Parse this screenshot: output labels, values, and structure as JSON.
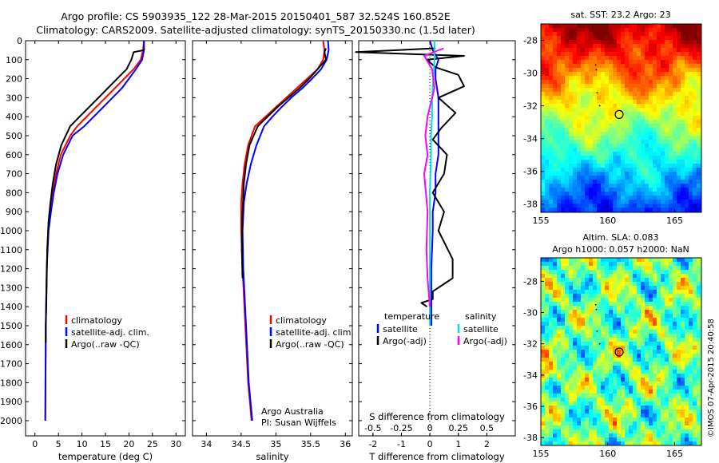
{
  "title_line1": "Argo profile: CS 5903935_122 28-Mar-2015 20150401_587 32.524S 160.852E",
  "title_line2": "Climatology: CARS2009. Satellite-adjusted climatology: synTS_20150330.nc (1.5d later)",
  "colors": {
    "climatology": "#ff0000",
    "satellite": "#0000ff",
    "argo": "#000000",
    "argo_salinity": "#ff00ff",
    "salinity_satellite": "#00e0e0"
  },
  "chart_data": [
    {
      "type": "line",
      "id": "temperature",
      "xlabel": "temperature (deg C)",
      "ylabel": "",
      "xlim": [
        -2,
        32
      ],
      "ylim": [
        2080,
        0
      ],
      "xticks": [
        0,
        5,
        10,
        15,
        20,
        25,
        30
      ],
      "yticks": [
        0,
        100,
        200,
        300,
        400,
        500,
        600,
        700,
        800,
        900,
        1000,
        1100,
        1200,
        1300,
        1400,
        1500,
        1600,
        1700,
        1800,
        1900,
        2000
      ],
      "legend": [
        "climatology",
        "satellite-adj. clim.",
        "Argo(..raw -QC)"
      ],
      "legend_position": "lower-right",
      "series": [
        {
          "name": "climatology",
          "x": [
            23.2,
            23,
            22.5,
            21,
            19,
            17,
            15,
            13,
            11,
            9,
            7.5,
            5.5,
            4.5,
            3.8,
            3.2,
            2.8,
            2.5,
            2.3,
            2.2
          ],
          "y": [
            0,
            50,
            100,
            150,
            200,
            250,
            300,
            350,
            400,
            450,
            500,
            600,
            700,
            800,
            900,
            1000,
            1200,
            1500,
            2000
          ]
        },
        {
          "name": "satellite-adj. clim.",
          "x": [
            23.2,
            23.2,
            22.8,
            21.5,
            20,
            18.5,
            16.5,
            14.5,
            12.5,
            10.5,
            8,
            6,
            4.8,
            4,
            3.4,
            2.9,
            2.5,
            2.3,
            2.2
          ],
          "y": [
            0,
            50,
            100,
            150,
            200,
            250,
            300,
            350,
            400,
            450,
            500,
            600,
            700,
            800,
            900,
            1000,
            1200,
            1500,
            2000
          ]
        },
        {
          "name": "Argo(..raw -QC)",
          "x": [
            23.3,
            23.1,
            21,
            20.5,
            19.5,
            17.5,
            15.5,
            13.5,
            11.5,
            9.5,
            7.5,
            5.6,
            4.5,
            3.8,
            3.3,
            2.9,
            2.6,
            2.5,
            2.4,
            2.3,
            2.3
          ],
          "y": [
            40,
            50,
            60,
            100,
            150,
            200,
            250,
            300,
            350,
            400,
            450,
            550,
            650,
            750,
            850,
            950,
            1100,
            1250,
            1400,
            1500,
            1590
          ]
        }
      ]
    },
    {
      "type": "line",
      "id": "salinity",
      "xlabel": "salinity",
      "xlim": [
        33.8,
        36.1
      ],
      "ylim": [
        2080,
        0
      ],
      "xticks": [
        34,
        34.5,
        35,
        35.5,
        36
      ],
      "legend": [
        "climatology",
        "satellite-adj. clim.",
        "Argo(..raw -QC)"
      ],
      "legend_position": "lower-right",
      "annotation": [
        "Argo Australia",
        "PI: Susan Wijffels"
      ],
      "series": [
        {
          "name": "climatology",
          "x": [
            35.68,
            35.7,
            35.68,
            35.6,
            35.45,
            35.3,
            35.15,
            35,
            34.85,
            34.7,
            34.6,
            34.55,
            34.52,
            34.5,
            34.5,
            34.52,
            34.56,
            34.6,
            34.65
          ],
          "y": [
            0,
            50,
            100,
            150,
            200,
            250,
            300,
            350,
            400,
            450,
            550,
            650,
            750,
            850,
            1000,
            1200,
            1500,
            1800,
            2000
          ]
        },
        {
          "name": "satellite-adj. clim.",
          "x": [
            35.75,
            35.76,
            35.73,
            35.65,
            35.52,
            35.38,
            35.22,
            35.08,
            34.95,
            34.83,
            34.72,
            34.64,
            34.58,
            34.54,
            34.52,
            34.53,
            34.57,
            34.61,
            34.66
          ],
          "y": [
            0,
            50,
            100,
            150,
            200,
            250,
            300,
            350,
            400,
            450,
            550,
            650,
            750,
            850,
            1000,
            1200,
            1500,
            1800,
            2000
          ]
        },
        {
          "name": "Argo(..raw -QC)",
          "x": [
            35.72,
            35.7,
            35.72,
            35.6,
            35.48,
            35.34,
            35.18,
            35.02,
            34.88,
            34.74,
            34.62,
            34.57,
            34.54,
            34.52,
            34.51,
            34.52
          ],
          "y": [
            40,
            60,
            100,
            150,
            200,
            250,
            300,
            350,
            400,
            450,
            550,
            650,
            750,
            900,
            1100,
            1250
          ]
        }
      ]
    },
    {
      "type": "line",
      "id": "difference",
      "xlabel": "T difference from climatology",
      "xlabel_top": "S difference from climatology",
      "xlim": [
        -2.5,
        3
      ],
      "ylim": [
        2080,
        0
      ],
      "xticks": [
        -2,
        -1,
        0,
        1,
        2
      ],
      "x2ticks": [
        -0.5,
        -0.25,
        0,
        0.25,
        0.5
      ],
      "x2ticklabels": [
        "-0.5",
        "-0.25",
        "0",
        "0.25",
        "0.5"
      ],
      "legend": {
        "temperature": [
          "satellite",
          "Argo(-adj)"
        ],
        "salinity": [
          "satellite",
          "Argo(-adj)"
        ]
      },
      "legend_headers": [
        "temperature",
        "salinity"
      ],
      "legend_position": "lower-center",
      "series": [
        {
          "name": "T satellite",
          "x": [
            0,
            0.1,
            0.3,
            0.2,
            0.2,
            0.3,
            0.3,
            0.3,
            0.3,
            0.2,
            0.2,
            0.1,
            0.1,
            0.05,
            0.05,
            0.05
          ],
          "y": [
            0,
            50,
            100,
            150,
            200,
            300,
            400,
            500,
            600,
            700,
            800,
            900,
            1000,
            1200,
            1400,
            1500
          ]
        },
        {
          "name": "T Argo(-adj)",
          "x": [
            0.2,
            -2.6,
            1.2,
            -0.1,
            0.2,
            1.0,
            1.2,
            0.3,
            0.9,
            0.4,
            0.1,
            0.6,
            0.5,
            0.1,
            0.5,
            0.3,
            0.8,
            0.8,
            0.1,
            0.1,
            -0.3,
            -0.1
          ],
          "y": [
            40,
            60,
            80,
            100,
            140,
            180,
            240,
            300,
            380,
            460,
            520,
            600,
            700,
            800,
            900,
            1000,
            1150,
            1250,
            1320,
            1360,
            1380,
            1400
          ]
        },
        {
          "name": "S satellite",
          "x": [
            0.04,
            0.04,
            0.03,
            0.02,
            0.02,
            0.01,
            0.01,
            0,
            0,
            0,
            0
          ],
          "y": [
            0,
            100,
            200,
            300,
            400,
            500,
            600,
            800,
            1000,
            1200,
            1500
          ]
        },
        {
          "name": "S Argo(-adj)",
          "x": [
            0.12,
            -0.05,
            0.02,
            0.04,
            -0.02,
            -0.04,
            -0.02,
            -0.05,
            -0.02,
            -0.03,
            -0.02,
            0
          ],
          "y": [
            40,
            80,
            150,
            250,
            400,
            500,
            600,
            700,
            900,
            1100,
            1250,
            1400
          ]
        }
      ]
    },
    {
      "type": "heatmap",
      "id": "sst-map",
      "title": "sat. SST: 23.2 Argo: 23",
      "xlim": [
        155,
        167
      ],
      "ylim": [
        -38.5,
        -27
      ],
      "xticks": [
        155,
        160,
        165
      ],
      "yticks": [
        -28,
        -30,
        -32,
        -34,
        -36,
        -38
      ],
      "marker": {
        "lon": 160.852,
        "lat": -32.524
      }
    },
    {
      "type": "heatmap",
      "id": "sla-map",
      "title": "Altim. SLA: 0.083",
      "subtitle": "Argo h1000: 0.057 h2000: NaN",
      "xlim": [
        155,
        167
      ],
      "ylim": [
        -38.5,
        -26.5
      ],
      "xticks": [
        155,
        160,
        165
      ],
      "yticks": [
        -28,
        -30,
        -32,
        -34,
        -36,
        -38
      ],
      "marker": {
        "lon": 160.852,
        "lat": -32.524
      }
    }
  ],
  "credit": "©IMOS 07-Apr-2015 20:40:58"
}
